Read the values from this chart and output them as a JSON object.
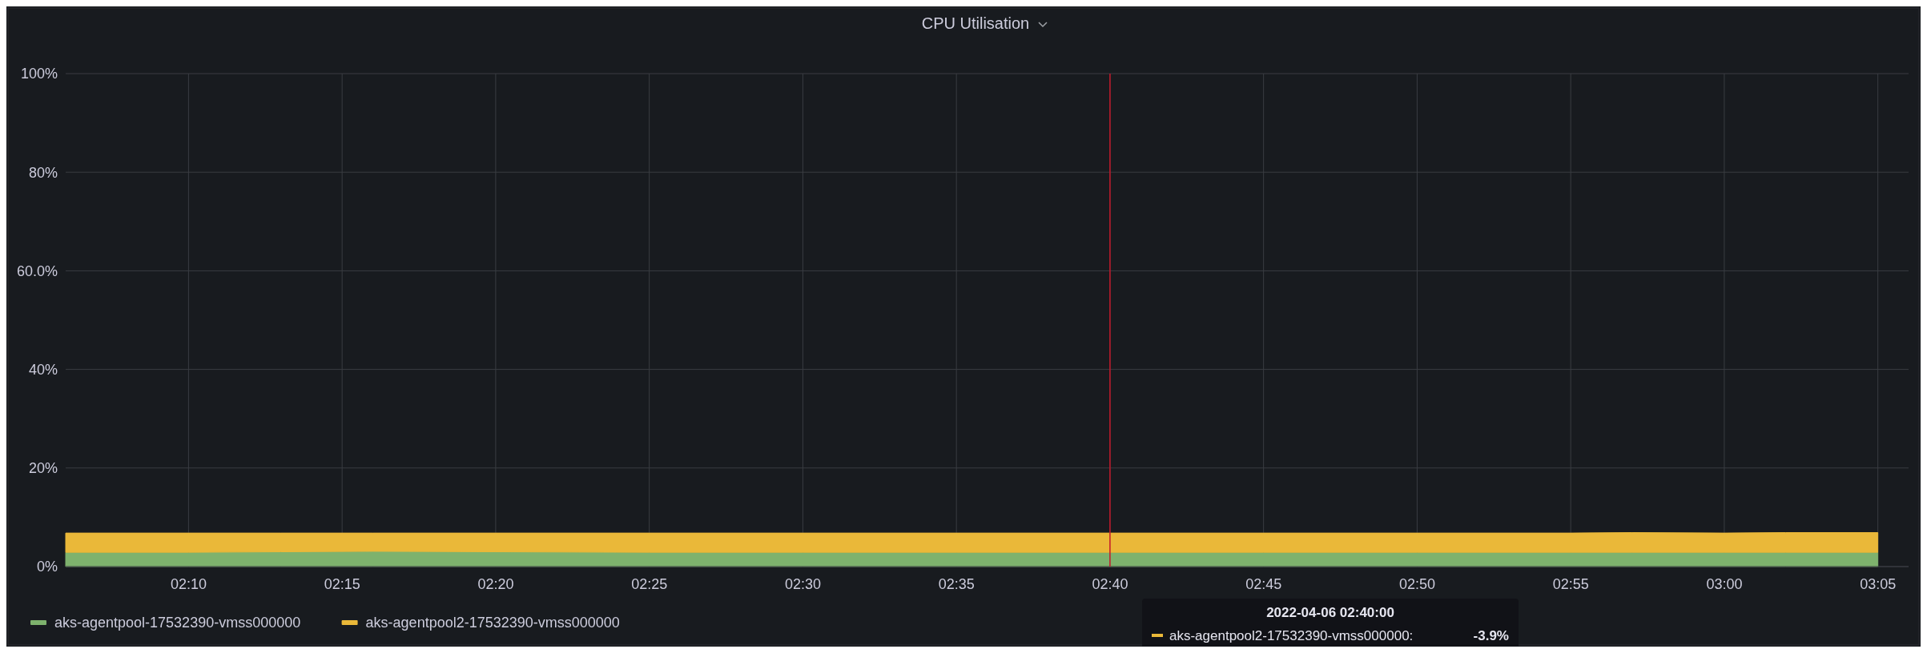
{
  "chart_data": {
    "type": "area",
    "title": "CPU Utilisation",
    "stacked": true,
    "x": [
      "2022-04-06T02:06",
      "2022-04-06T02:10",
      "2022-04-06T02:13",
      "2022-04-06T02:16",
      "2022-04-06T02:20",
      "2022-04-06T02:25",
      "2022-04-06T02:30",
      "2022-04-06T02:35",
      "2022-04-06T02:40",
      "2022-04-06T02:45",
      "2022-04-06T02:50",
      "2022-04-06T02:55",
      "2022-04-06T02:57",
      "2022-04-06T03:00",
      "2022-04-06T03:02",
      "2022-04-06T03:05"
    ],
    "series": [
      {
        "name": "aks-agentpool-17532390-vmss000000",
        "color": "#7eb26d",
        "values": [
          2.9,
          2.9,
          3.0,
          3.1,
          3.0,
          2.9,
          2.9,
          2.9,
          2.9,
          2.9,
          2.9,
          2.9,
          2.9,
          2.9,
          2.9,
          2.9
        ]
      },
      {
        "name": "aks-agentpool2-17532390-vmss000000",
        "color": "#eab839",
        "values": [
          3.9,
          3.9,
          3.8,
          3.7,
          3.8,
          3.9,
          3.9,
          3.9,
          3.9,
          3.9,
          3.9,
          3.9,
          4.0,
          3.9,
          4.0,
          4.0
        ]
      }
    ],
    "xlim": [
      "2022-04-06T02:06",
      "2022-04-06T03:06"
    ],
    "xticks": [
      {
        "value": "2022-04-06T02:10",
        "label": "02:10"
      },
      {
        "value": "2022-04-06T02:15",
        "label": "02:15"
      },
      {
        "value": "2022-04-06T02:20",
        "label": "02:20"
      },
      {
        "value": "2022-04-06T02:25",
        "label": "02:25"
      },
      {
        "value": "2022-04-06T02:30",
        "label": "02:30"
      },
      {
        "value": "2022-04-06T02:35",
        "label": "02:35"
      },
      {
        "value": "2022-04-06T02:40",
        "label": "02:40"
      },
      {
        "value": "2022-04-06T02:45",
        "label": "02:45"
      },
      {
        "value": "2022-04-06T02:50",
        "label": "02:50"
      },
      {
        "value": "2022-04-06T02:55",
        "label": "02:55"
      },
      {
        "value": "2022-04-06T03:00",
        "label": "03:00"
      },
      {
        "value": "2022-04-06T03:05",
        "label": "03:05"
      }
    ],
    "ylim": [
      0,
      100
    ],
    "yticks": [
      {
        "value": 0,
        "label": "0%"
      },
      {
        "value": 20,
        "label": "20%"
      },
      {
        "value": 40,
        "label": "40%"
      },
      {
        "value": 60,
        "label": "60.0%"
      },
      {
        "value": 80,
        "label": "80%"
      },
      {
        "value": 100,
        "label": "100%"
      }
    ],
    "grid": true,
    "legend": "bottom",
    "ref_lines": [
      {
        "axis": "x",
        "value": "2022-04-06T02:40",
        "color": "#c4162a"
      }
    ],
    "annotations": [
      "2022-04-06 02:40:00",
      "aks-agentpool2-17532390-vmss000000:",
      "-3.9%"
    ]
  }
}
